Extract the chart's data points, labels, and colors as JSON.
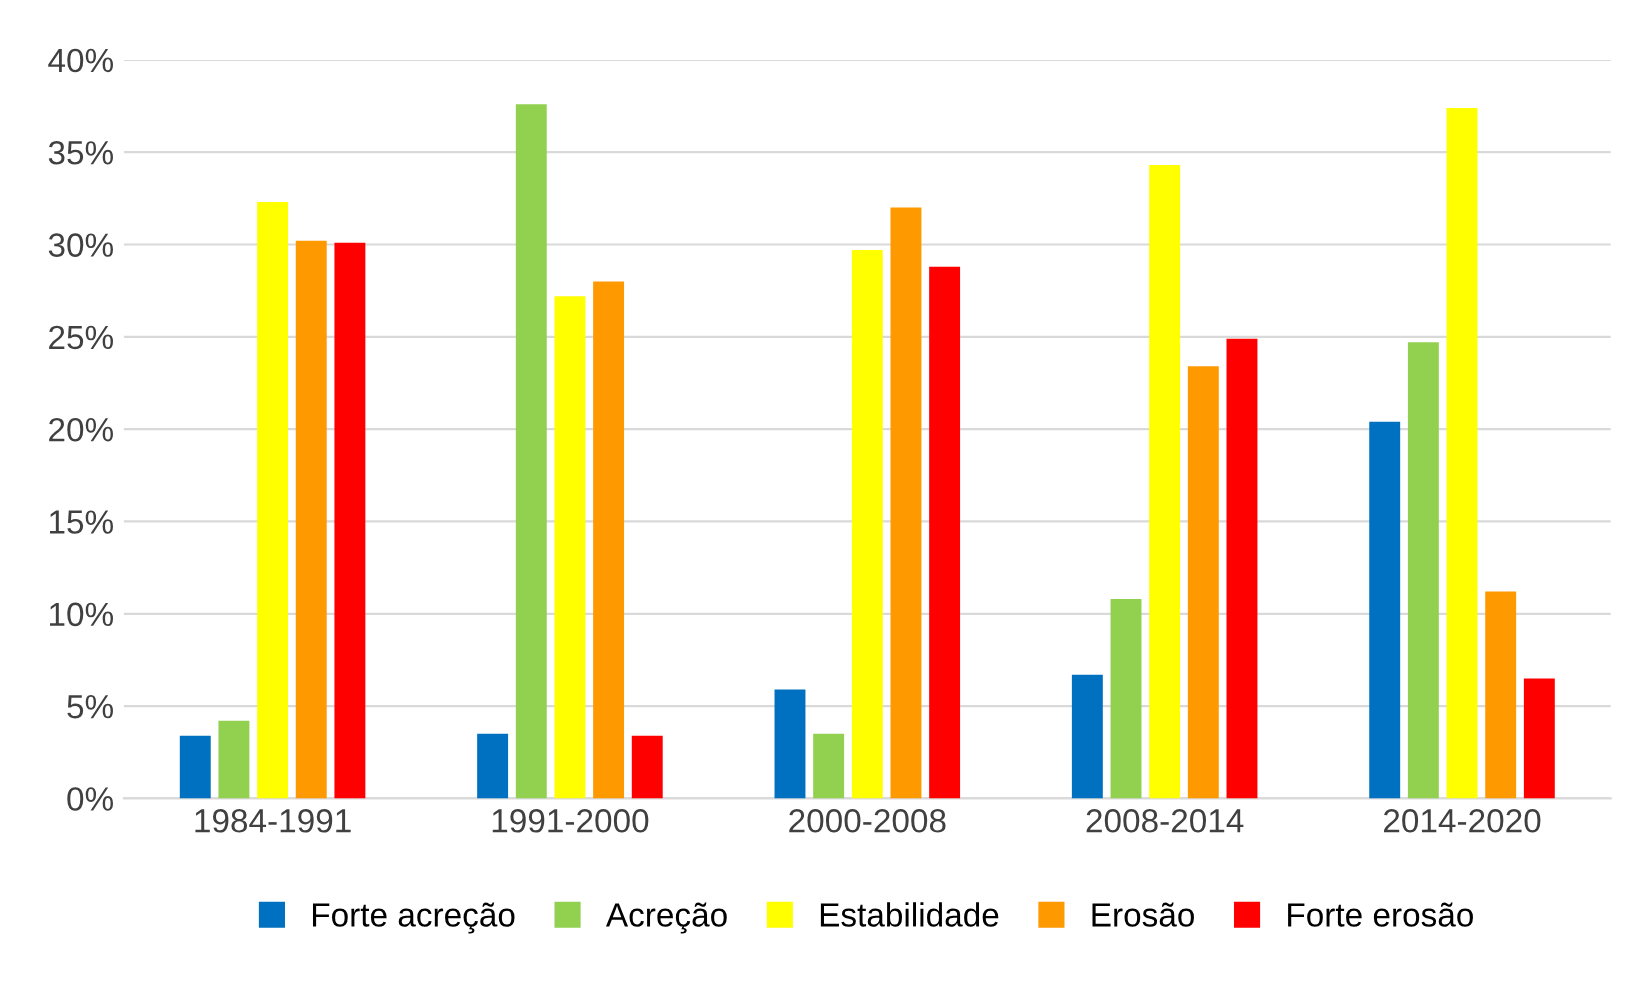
{
  "chart_data": {
    "type": "bar",
    "categories": [
      "1984-1991",
      "1991-2000",
      "2000-2008",
      "2008-2014",
      "2014-2020"
    ],
    "series": [
      {
        "name": "Forte acreção",
        "color": "#0070c0",
        "values": [
          3.4,
          3.5,
          5.9,
          6.7,
          20.4
        ]
      },
      {
        "name": "Acreção",
        "color": "#92d050",
        "values": [
          4.2,
          37.6,
          3.5,
          10.8,
          24.7
        ]
      },
      {
        "name": "Estabilidade",
        "color": "#ffff00",
        "values": [
          32.3,
          27.2,
          29.7,
          34.3,
          37.4
        ]
      },
      {
        "name": "Erosão",
        "color": "#ff9900",
        "values": [
          30.2,
          28.0,
          32.0,
          23.4,
          11.2
        ]
      },
      {
        "name": "Forte erosão",
        "color": "#ff0000",
        "values": [
          30.1,
          3.4,
          28.8,
          24.9,
          6.5
        ]
      }
    ],
    "ylim": [
      0,
      40
    ],
    "yticks": [
      {
        "value": 0,
        "label": "0%"
      },
      {
        "value": 5,
        "label": "5%"
      },
      {
        "value": 10,
        "label": "10%"
      },
      {
        "value": 15,
        "label": "15%"
      },
      {
        "value": 20,
        "label": "20%"
      },
      {
        "value": 25,
        "label": "25%"
      },
      {
        "value": 30,
        "label": "30%"
      },
      {
        "value": 35,
        "label": "35%"
      },
      {
        "value": 40,
        "label": "40%"
      }
    ],
    "grid": "y",
    "legend": "bottom"
  }
}
